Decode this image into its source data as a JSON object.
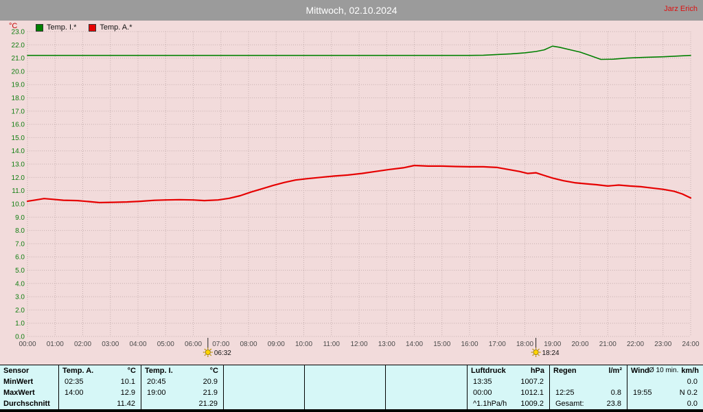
{
  "titlebar": {
    "title": "Mittwoch, 02.10.2024",
    "author": "Jarz Erich"
  },
  "chart_data": {
    "type": "line",
    "title": "Mittwoch, 02.10.2024",
    "ylabel": "°C",
    "xlabel": "",
    "ylim": [
      0,
      23
    ],
    "ytick_step": 1,
    "xlim": [
      0,
      24
    ],
    "xtick_step": 1,
    "xtick_suffix": ":00",
    "grid": true,
    "legend_position": "top-left",
    "colors": {
      "plot_background": "#f2dbdb",
      "grid": "#c6b0b0",
      "ytick": "#0f7d0f",
      "xtick": "#4a4a4a"
    },
    "series": [
      {
        "id": "temp-i",
        "name": "Temp. I.*",
        "color": "#008000",
        "width": 1.6,
        "points": [
          [
            0,
            21.2
          ],
          [
            1,
            21.2
          ],
          [
            2,
            21.2
          ],
          [
            3,
            21.2
          ],
          [
            4,
            21.2
          ],
          [
            5,
            21.2
          ],
          [
            6,
            21.2
          ],
          [
            7,
            21.2
          ],
          [
            8,
            21.2
          ],
          [
            9,
            21.2
          ],
          [
            10,
            21.2
          ],
          [
            11,
            21.2
          ],
          [
            12,
            21.2
          ],
          [
            13,
            21.2
          ],
          [
            14,
            21.2
          ],
          [
            15,
            21.2
          ],
          [
            16,
            21.2
          ],
          [
            16.5,
            21.22
          ],
          [
            17,
            21.27
          ],
          [
            17.5,
            21.32
          ],
          [
            18,
            21.4
          ],
          [
            18.4,
            21.5
          ],
          [
            18.7,
            21.62
          ],
          [
            19,
            21.9
          ],
          [
            19.25,
            21.82
          ],
          [
            19.6,
            21.65
          ],
          [
            20,
            21.45
          ],
          [
            20.35,
            21.2
          ],
          [
            20.75,
            20.9
          ],
          [
            21.2,
            20.92
          ],
          [
            21.7,
            21.0
          ],
          [
            22.3,
            21.05
          ],
          [
            23,
            21.1
          ],
          [
            23.5,
            21.15
          ],
          [
            24,
            21.2
          ]
        ]
      },
      {
        "id": "temp-a",
        "name": "Temp. A.*",
        "color": "#e60000",
        "width": 2.2,
        "points": [
          [
            0,
            10.2
          ],
          [
            0.3,
            10.3
          ],
          [
            0.6,
            10.4
          ],
          [
            0.9,
            10.35
          ],
          [
            1.3,
            10.28
          ],
          [
            1.8,
            10.25
          ],
          [
            2.2,
            10.18
          ],
          [
            2.6,
            10.1
          ],
          [
            3.1,
            10.12
          ],
          [
            3.6,
            10.15
          ],
          [
            4.1,
            10.2
          ],
          [
            4.6,
            10.27
          ],
          [
            5,
            10.3
          ],
          [
            5.5,
            10.32
          ],
          [
            6,
            10.3
          ],
          [
            6.4,
            10.25
          ],
          [
            6.9,
            10.3
          ],
          [
            7.3,
            10.42
          ],
          [
            7.7,
            10.62
          ],
          [
            8.1,
            10.9
          ],
          [
            8.5,
            11.15
          ],
          [
            8.9,
            11.4
          ],
          [
            9.3,
            11.62
          ],
          [
            9.7,
            11.8
          ],
          [
            10.1,
            11.9
          ],
          [
            10.6,
            12.0
          ],
          [
            11.1,
            12.1
          ],
          [
            11.6,
            12.18
          ],
          [
            12.1,
            12.3
          ],
          [
            12.6,
            12.45
          ],
          [
            13.1,
            12.6
          ],
          [
            13.6,
            12.72
          ],
          [
            14,
            12.9
          ],
          [
            14.5,
            12.85
          ],
          [
            15,
            12.85
          ],
          [
            15.5,
            12.82
          ],
          [
            16,
            12.8
          ],
          [
            16.5,
            12.8
          ],
          [
            17,
            12.75
          ],
          [
            17.4,
            12.6
          ],
          [
            17.8,
            12.45
          ],
          [
            18.1,
            12.3
          ],
          [
            18.4,
            12.35
          ],
          [
            18.7,
            12.15
          ],
          [
            19,
            11.95
          ],
          [
            19.4,
            11.75
          ],
          [
            19.8,
            11.6
          ],
          [
            20.2,
            11.52
          ],
          [
            20.6,
            11.45
          ],
          [
            21,
            11.35
          ],
          [
            21.4,
            11.42
          ],
          [
            21.8,
            11.35
          ],
          [
            22.2,
            11.3
          ],
          [
            22.6,
            11.2
          ],
          [
            23,
            11.1
          ],
          [
            23.4,
            10.95
          ],
          [
            23.7,
            10.75
          ],
          [
            24,
            10.45
          ]
        ]
      }
    ],
    "sun_markers": [
      {
        "label": "06:32",
        "x": 6.53,
        "icon": "sunrise-sun-icon"
      },
      {
        "label": "18:24",
        "x": 18.4,
        "icon": "sunset-sun-icon"
      }
    ]
  },
  "stats": {
    "row_labels": [
      "Sensor",
      "MinWert",
      "MaxWert",
      "Durchschnitt"
    ],
    "groups": [
      {
        "name": "Temp. A.",
        "unit": "°C",
        "rows": [
          [
            "02:35",
            "10.1"
          ],
          [
            "14:00",
            "12.9"
          ],
          [
            "",
            "11.42"
          ]
        ]
      },
      {
        "name": "Temp. I.",
        "unit": "°C",
        "rows": [
          [
            "20:45",
            "20.9"
          ],
          [
            "19:00",
            "21.9"
          ],
          [
            "",
            "21.29"
          ]
        ]
      },
      {
        "name": "",
        "unit": "",
        "rows": [
          [
            "",
            ""
          ],
          [
            "",
            ""
          ],
          [
            "",
            ""
          ]
        ]
      },
      {
        "name": "",
        "unit": "",
        "rows": [
          [
            "",
            ""
          ],
          [
            "",
            ""
          ],
          [
            "",
            ""
          ]
        ]
      },
      {
        "name": "",
        "unit": "",
        "rows": [
          [
            "",
            ""
          ],
          [
            "",
            ""
          ],
          [
            "",
            ""
          ]
        ]
      },
      {
        "name": "Luftdruck",
        "unit": "hPa",
        "rows": [
          [
            "13:35",
            "1007.2"
          ],
          [
            "00:00",
            "1012.1"
          ],
          [
            "^1.1hPa/h",
            "1009.2"
          ]
        ]
      },
      {
        "name": "Regen",
        "unit": "l/m²",
        "rows": [
          [
            "",
            ""
          ],
          [
            "12:25",
            "0.8"
          ],
          [
            "Gesamt:",
            "23.8"
          ]
        ]
      },
      {
        "name": "Wind",
        "unit": "km/h",
        "note": "Ø 10 min.",
        "rows": [
          [
            "",
            "0.0"
          ],
          [
            "19:55",
            "N 0.2"
          ],
          [
            "",
            "0.0"
          ]
        ]
      }
    ]
  }
}
